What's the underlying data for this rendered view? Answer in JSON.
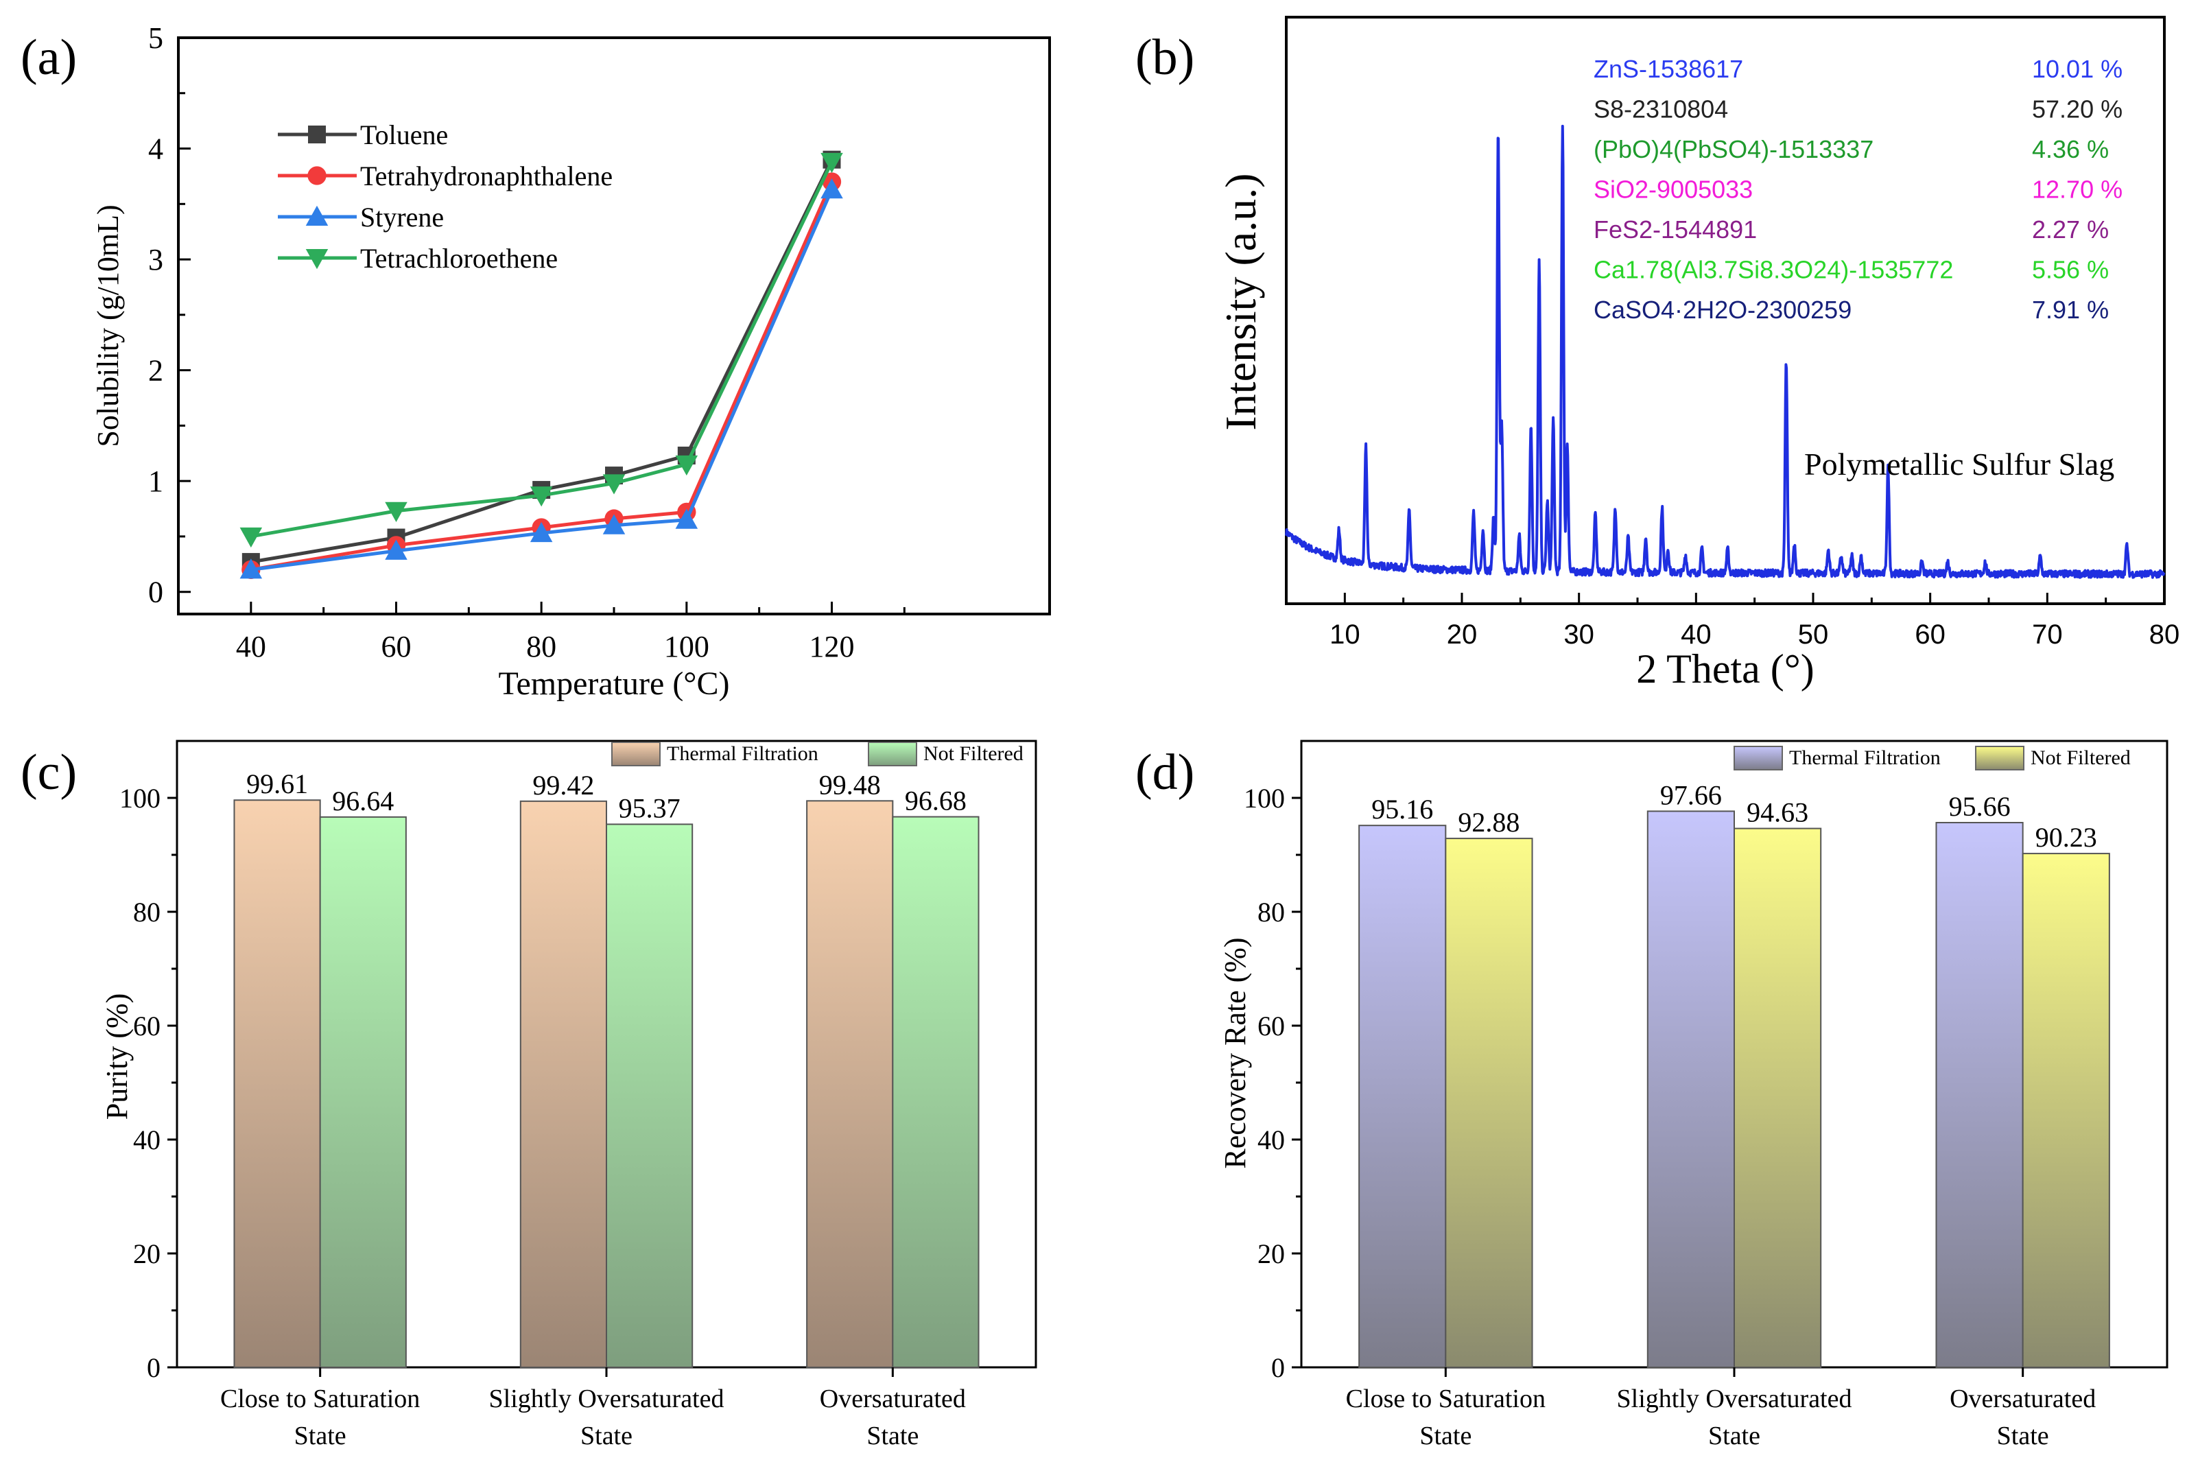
{
  "chart_data": [
    {
      "panel": "(a)",
      "type": "line",
      "xlabel": "Temperature (°C)",
      "ylabel": "Solubility (g/10mL)",
      "x": [
        40,
        60,
        80,
        90,
        100,
        120
      ],
      "xlim": [
        30,
        150
      ],
      "ylim": [
        -0.2,
        5
      ],
      "xticks": [
        40,
        60,
        80,
        100,
        120
      ],
      "yticks": [
        0,
        1,
        2,
        3,
        4,
        5
      ],
      "legend_position": "top-left",
      "series": [
        {
          "name": "Toluene",
          "color": "#404040",
          "marker": "square",
          "values": [
            0.27,
            0.49,
            0.92,
            1.05,
            1.23,
            3.9
          ]
        },
        {
          "name": "Tetrahydronaphthalene",
          "color": "#f23b3b",
          "marker": "circle",
          "values": [
            0.2,
            0.42,
            0.58,
            0.66,
            0.72,
            3.7
          ]
        },
        {
          "name": "Styrene",
          "color": "#2f7fe8",
          "marker": "triangle-up",
          "values": [
            0.2,
            0.37,
            0.53,
            0.6,
            0.65,
            3.63
          ]
        },
        {
          "name": "Tetrachloroethene",
          "color": "#2dac5a",
          "marker": "triangle-down",
          "values": [
            0.5,
            0.73,
            0.87,
            0.98,
            1.15,
            3.88
          ]
        }
      ]
    },
    {
      "panel": "(b)",
      "type": "line",
      "xlabel": "2 Theta (°)",
      "ylabel": "Intensity (a.u.)",
      "xlim": [
        5,
        80
      ],
      "ylim": [
        0,
        1
      ],
      "xticks": [
        10,
        20,
        30,
        40,
        50,
        60,
        70,
        80
      ],
      "line_color": "#1f2fe0",
      "annotation": "Polymetallic Sulfur Slag",
      "baseline": 0.05,
      "peaks": [
        {
          "x": 9.5,
          "h": 0.05
        },
        {
          "x": 11.8,
          "h": 0.2
        },
        {
          "x": 15.5,
          "h": 0.1
        },
        {
          "x": 21.0,
          "h": 0.1
        },
        {
          "x": 21.8,
          "h": 0.07
        },
        {
          "x": 22.7,
          "h": 0.09
        },
        {
          "x": 23.1,
          "h": 0.75
        },
        {
          "x": 23.4,
          "h": 0.25
        },
        {
          "x": 24.9,
          "h": 0.06
        },
        {
          "x": 25.9,
          "h": 0.25
        },
        {
          "x": 26.6,
          "h": 0.53
        },
        {
          "x": 27.3,
          "h": 0.12
        },
        {
          "x": 27.8,
          "h": 0.26
        },
        {
          "x": 28.6,
          "h": 0.76
        },
        {
          "x": 29.0,
          "h": 0.22
        },
        {
          "x": 31.4,
          "h": 0.1
        },
        {
          "x": 33.1,
          "h": 0.11
        },
        {
          "x": 34.2,
          "h": 0.06
        },
        {
          "x": 35.7,
          "h": 0.06
        },
        {
          "x": 37.1,
          "h": 0.11
        },
        {
          "x": 37.6,
          "h": 0.04
        },
        {
          "x": 39.1,
          "h": 0.03
        },
        {
          "x": 40.5,
          "h": 0.04
        },
        {
          "x": 42.7,
          "h": 0.04
        },
        {
          "x": 47.7,
          "h": 0.36
        },
        {
          "x": 48.4,
          "h": 0.05
        },
        {
          "x": 51.3,
          "h": 0.04
        },
        {
          "x": 52.4,
          "h": 0.03
        },
        {
          "x": 53.3,
          "h": 0.03
        },
        {
          "x": 54.1,
          "h": 0.03
        },
        {
          "x": 56.4,
          "h": 0.18
        },
        {
          "x": 59.3,
          "h": 0.02
        },
        {
          "x": 61.5,
          "h": 0.02
        },
        {
          "x": 64.7,
          "h": 0.02
        },
        {
          "x": 69.4,
          "h": 0.03
        },
        {
          "x": 76.8,
          "h": 0.05
        }
      ],
      "phases": [
        {
          "label": "ZnS-1538617",
          "pct": "10.01 %",
          "color": "#2a3bf0"
        },
        {
          "label": "S8-2310804",
          "pct": "57.20 %",
          "color": "#222222"
        },
        {
          "label": "(PbO)4(PbSO4)-1513337",
          "pct": "4.36 %",
          "color": "#1e9a2c"
        },
        {
          "label": "SiO2-9005033",
          "pct": "12.70 %",
          "color": "#f21bd8"
        },
        {
          "label": "FeS2-1544891",
          "pct": "2.27 %",
          "color": "#8a1f8a"
        },
        {
          "label": "Ca1.78(Al3.7Si8.3O24)-1535772",
          "pct": "5.56 %",
          "color": "#28d428"
        },
        {
          "label": "CaSO4·2H2O-2300259",
          "pct": "7.91 %",
          "color": "#16207a"
        }
      ]
    },
    {
      "panel": "(c)",
      "type": "bar",
      "ylabel": "Purity (%)",
      "ylim": [
        0,
        110
      ],
      "yticks": [
        0,
        20,
        40,
        60,
        80,
        100
      ],
      "categories": [
        [
          "Close to Saturation",
          "State"
        ],
        [
          "Slightly Oversaturated",
          "State"
        ],
        [
          "Oversaturated",
          "State"
        ]
      ],
      "legend_position": "top-right",
      "series": [
        {
          "name": "Thermal Filtration",
          "values": [
            99.61,
            99.42,
            99.48
          ],
          "labels": [
            "99.61",
            "99.42",
            "99.48"
          ],
          "color_top": "#f8d2b0",
          "color_bottom": "#9b8574"
        },
        {
          "name": "Not Filtered",
          "values": [
            96.64,
            95.37,
            96.68
          ],
          "labels": [
            "96.64",
            "95.37",
            "96.68"
          ],
          "color_top": "#b8fcb8",
          "color_bottom": "#7e9e7e"
        }
      ]
    },
    {
      "panel": "(d)",
      "type": "bar",
      "ylabel": "Recovery Rate (%)",
      "ylim": [
        0,
        110
      ],
      "yticks": [
        0,
        20,
        40,
        60,
        80,
        100
      ],
      "categories": [
        [
          "Close to Saturation",
          "State"
        ],
        [
          "Slightly Oversaturated",
          "State"
        ],
        [
          "Oversaturated",
          "State"
        ]
      ],
      "legend_position": "top-right",
      "series": [
        {
          "name": "Thermal Filtration",
          "values": [
            95.16,
            97.66,
            95.66
          ],
          "labels": [
            "95.16",
            "97.66",
            "95.66"
          ],
          "color_top": "#c6c6fc",
          "color_bottom": "#7c7c8a"
        },
        {
          "name": "Not Filtered",
          "values": [
            92.88,
            94.63,
            90.23
          ],
          "labels": [
            "92.88",
            "94.63",
            "90.23"
          ],
          "color_top": "#fcfc8a",
          "color_bottom": "#8a8a6e"
        }
      ]
    }
  ]
}
